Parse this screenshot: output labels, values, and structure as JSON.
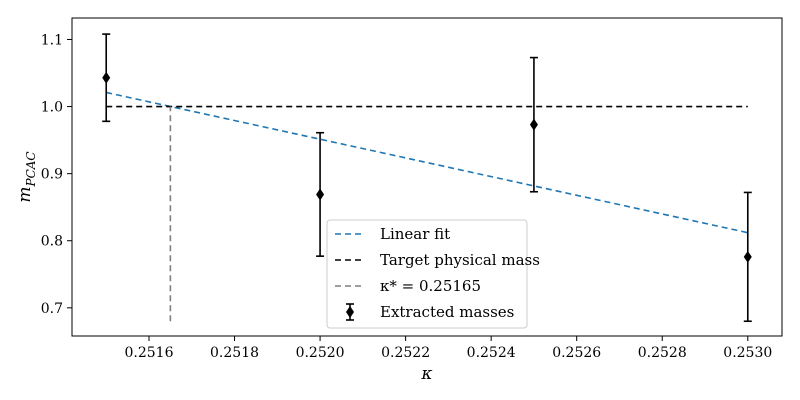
{
  "chart_data": {
    "type": "scatter",
    "title": "",
    "xlabel": "κ",
    "ylabel": "m_PCAC",
    "xlim": [
      0.25142,
      0.25308
    ],
    "ylim": [
      0.658,
      1.132
    ],
    "xticks": [
      "0.2516",
      "0.2518",
      "0.2520",
      "0.2522",
      "0.2524",
      "0.2526",
      "0.2528",
      "0.2530"
    ],
    "xtick_values": [
      0.2516,
      0.2518,
      0.252,
      0.2522,
      0.2524,
      0.2526,
      0.2528,
      0.253
    ],
    "yticks": [
      "0.7",
      "0.8",
      "0.9",
      "1.0",
      "1.1"
    ],
    "ytick_values": [
      0.7,
      0.8,
      0.9,
      1.0,
      1.1
    ],
    "grid": false,
    "legend_position": "bottom-center",
    "series": [
      {
        "name": "Extracted masses",
        "kind": "errorbar",
        "color": "#000000",
        "marker": "diamond",
        "x": [
          0.2515,
          0.252,
          0.2525,
          0.253
        ],
        "y": [
          1.043,
          0.869,
          0.973,
          0.776
        ],
        "yerr": [
          0.065,
          0.092,
          0.1,
          0.096
        ]
      },
      {
        "name": "Linear fit",
        "kind": "line",
        "color": "#1f77b4",
        "dash": "dashed",
        "x": [
          0.2515,
          0.253
        ],
        "y": [
          1.021,
          0.812
        ]
      },
      {
        "name": "Target physical mass",
        "kind": "line",
        "color": "#000000",
        "dash": "dashed",
        "x": [
          0.2515,
          0.253
        ],
        "y": [
          1.0,
          1.0
        ]
      },
      {
        "name": "κ* = 0.25165",
        "kind": "vline",
        "color": "#7f7f7f",
        "dash": "dashed",
        "x": [
          0.25165,
          0.25165
        ],
        "y": [
          0.68,
          1.0
        ]
      }
    ],
    "legend": [
      {
        "label": "Linear fit",
        "series": 1
      },
      {
        "label": "Target physical mass",
        "series": 2
      },
      {
        "label": "κ* = 0.25165",
        "series": 3
      },
      {
        "label": "Extracted masses",
        "series": 0
      }
    ]
  }
}
